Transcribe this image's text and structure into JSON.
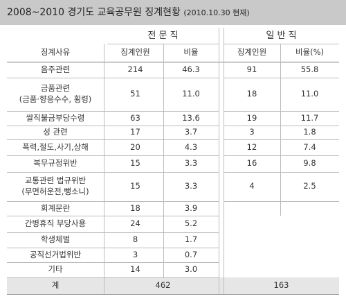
{
  "title": "2008~2010 경기도 교육공무원 징계현황",
  "title_note": "(2010.10.30 현재)",
  "table": {
    "groups": [
      "전 문 직",
      "일 반 직"
    ],
    "headers": [
      "징계사유",
      "징계인원",
      "비율",
      "징계인원",
      "비율(%)"
    ],
    "rows": [
      [
        [
          "음주관련"
        ],
        "214",
        "46.3",
        "91",
        "55.8"
      ],
      [
        [
          "금품관련",
          "(금품·향응수수, 횡령)"
        ],
        "51",
        "11.0",
        "18",
        "11.0"
      ],
      [
        [
          "쌀직불금부당수령"
        ],
        "63",
        "13.6",
        "19",
        "11.7"
      ],
      [
        [
          "성 관련"
        ],
        "17",
        "3.7",
        "3",
        "1.8"
      ],
      [
        [
          "폭력,절도,사기,상해"
        ],
        "20",
        "4.3",
        "12",
        "7.4"
      ],
      [
        [
          "복무규정위반"
        ],
        "15",
        "3.3",
        "16",
        "9.8"
      ],
      [
        [
          "교통관련 법규위반",
          "(무면허운전,뺑소니)"
        ],
        "15",
        "3.3",
        "4",
        "2.5"
      ],
      [
        [
          "회계문란"
        ],
        "18",
        "3.9"
      ],
      [
        [
          "간병휴직 부당사용"
        ],
        "24",
        "5.2"
      ],
      [
        [
          "학생체벌"
        ],
        "8",
        "1.7"
      ],
      [
        [
          "공직선거법위반"
        ],
        "3",
        "0.7"
      ],
      [
        [
          "기타"
        ],
        "14",
        "3.0"
      ]
    ],
    "total": [
      "계",
      "462",
      "163"
    ]
  }
}
